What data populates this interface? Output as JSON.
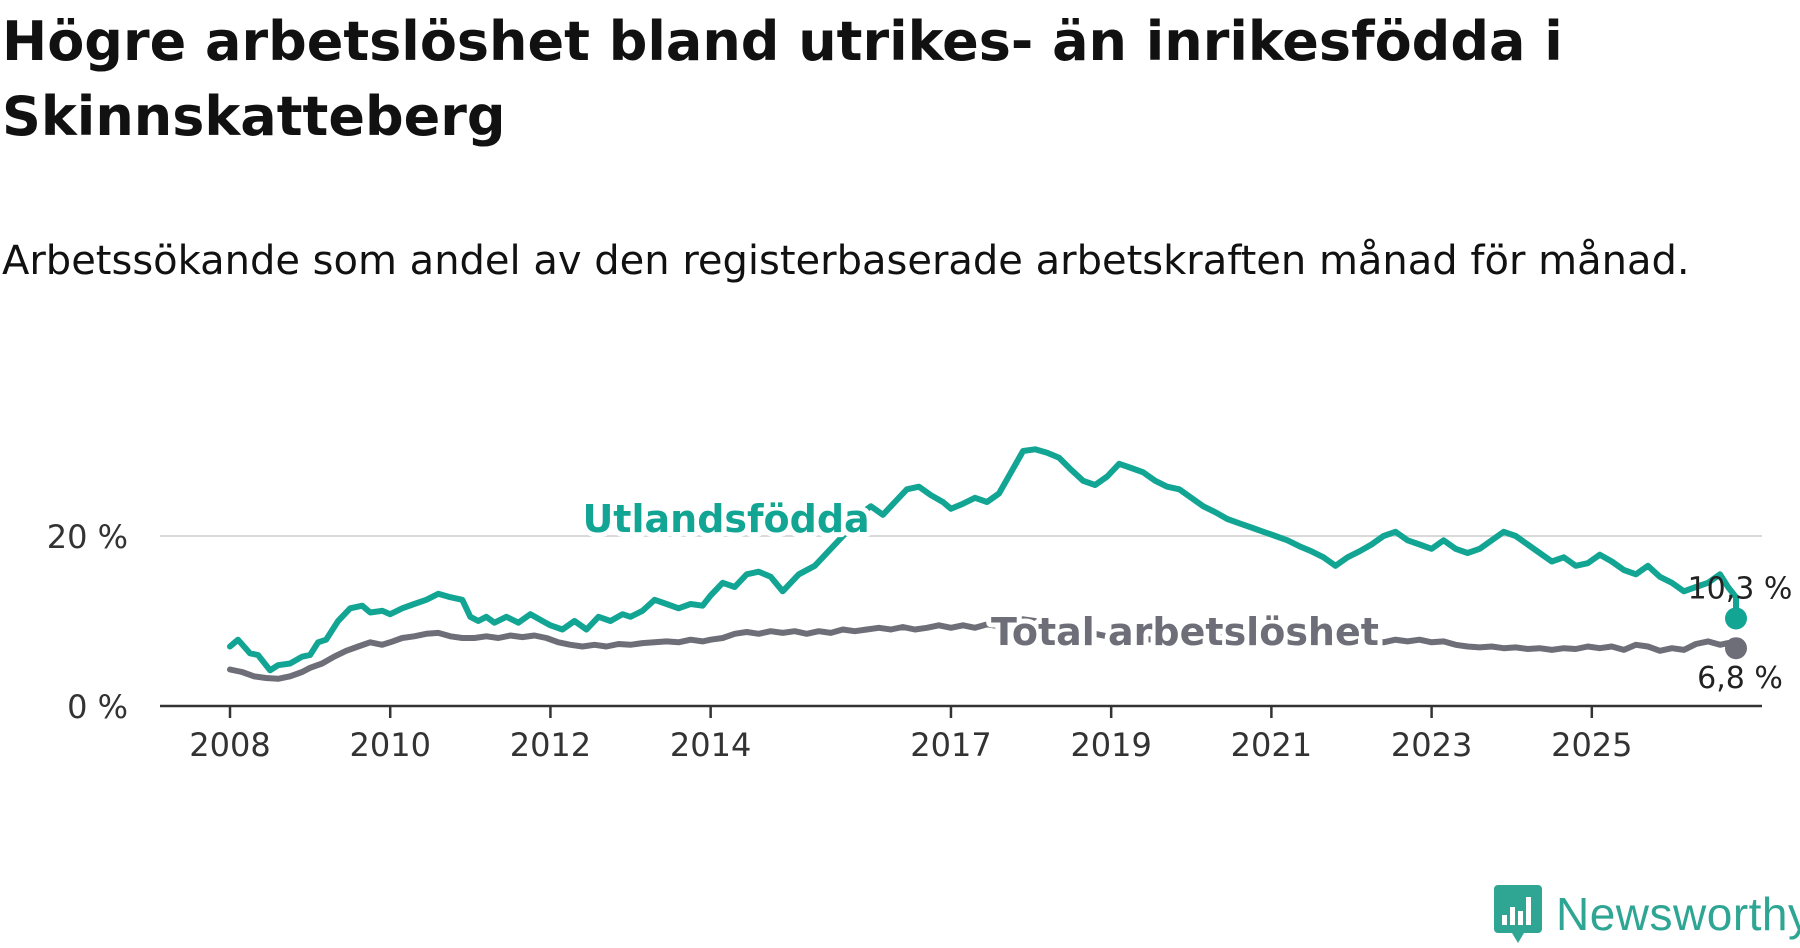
{
  "header": {
    "title": "Högre arbetslöshet bland utrikes- än inrikesfödda i Skinnskatteberg",
    "subtitle": "Arbetssökande som andel av den registerbaserade arbetskraften månad för månad."
  },
  "brand": {
    "name": "Newsworthy",
    "color": "#2fa594",
    "icon": "newsworthy-logo-icon"
  },
  "chart_data": {
    "type": "line",
    "title": "Högre arbetslöshet bland utrikes- än inrikesfödda i Skinnskatteberg",
    "subtitle": "Arbetssökande som andel av den registerbaserade arbetskraften månad för månad.",
    "xlabel": "",
    "ylabel": "",
    "xlim": [
      2008.0,
      2026.8
    ],
    "ylim": [
      0,
      30
    ],
    "grid": "horizontal",
    "x_ticks": [
      2008,
      2010,
      2012,
      2014,
      2017,
      2019,
      2021,
      2023,
      2025
    ],
    "x_tick_labels": [
      "2008",
      "2010",
      "2012",
      "2014",
      "2017",
      "2019",
      "2021",
      "2023",
      "2025"
    ],
    "y_ticks": [
      0,
      20
    ],
    "y_tick_labels": [
      "0 %",
      "20 %"
    ],
    "series": [
      {
        "name": "Utlandsfödda",
        "label": "Utlandsfödda",
        "color": "#12a594",
        "last_label": "10,3 %",
        "points": [
          [
            2008.0,
            7.0
          ],
          [
            2008.1,
            7.8
          ],
          [
            2008.25,
            6.2
          ],
          [
            2008.35,
            6.0
          ],
          [
            2008.5,
            4.2
          ],
          [
            2008.6,
            4.8
          ],
          [
            2008.75,
            5.0
          ],
          [
            2008.9,
            5.8
          ],
          [
            2009.0,
            6.0
          ],
          [
            2009.1,
            7.5
          ],
          [
            2009.2,
            7.8
          ],
          [
            2009.35,
            10.0
          ],
          [
            2009.5,
            11.5
          ],
          [
            2009.65,
            11.8
          ],
          [
            2009.75,
            11.0
          ],
          [
            2009.9,
            11.2
          ],
          [
            2010.0,
            10.8
          ],
          [
            2010.15,
            11.5
          ],
          [
            2010.3,
            12.0
          ],
          [
            2010.45,
            12.5
          ],
          [
            2010.6,
            13.2
          ],
          [
            2010.75,
            12.8
          ],
          [
            2010.9,
            12.5
          ],
          [
            2011.0,
            10.5
          ],
          [
            2011.1,
            10.0
          ],
          [
            2011.2,
            10.5
          ],
          [
            2011.3,
            9.8
          ],
          [
            2011.45,
            10.5
          ],
          [
            2011.6,
            9.8
          ],
          [
            2011.75,
            10.8
          ],
          [
            2011.9,
            10.0
          ],
          [
            2012.0,
            9.5
          ],
          [
            2012.15,
            9.0
          ],
          [
            2012.3,
            10.0
          ],
          [
            2012.45,
            9.0
          ],
          [
            2012.6,
            10.5
          ],
          [
            2012.75,
            10.0
          ],
          [
            2012.9,
            10.8
          ],
          [
            2013.0,
            10.5
          ],
          [
            2013.15,
            11.2
          ],
          [
            2013.3,
            12.5
          ],
          [
            2013.45,
            12.0
          ],
          [
            2013.6,
            11.5
          ],
          [
            2013.75,
            12.0
          ],
          [
            2013.9,
            11.8
          ],
          [
            2014.0,
            13.0
          ],
          [
            2014.15,
            14.5
          ],
          [
            2014.3,
            14.0
          ],
          [
            2014.45,
            15.5
          ],
          [
            2014.6,
            15.8
          ],
          [
            2014.75,
            15.2
          ],
          [
            2014.9,
            13.5
          ],
          [
            2015.1,
            15.5
          ],
          [
            2015.3,
            16.5
          ],
          [
            2015.5,
            18.5
          ],
          [
            2015.7,
            20.5
          ],
          [
            2015.85,
            22.5
          ],
          [
            2016.0,
            23.5
          ],
          [
            2016.15,
            22.5
          ],
          [
            2016.3,
            24.0
          ],
          [
            2016.45,
            25.5
          ],
          [
            2016.6,
            25.8
          ],
          [
            2016.75,
            24.8
          ],
          [
            2016.9,
            24.0
          ],
          [
            2017.0,
            23.2
          ],
          [
            2017.15,
            23.8
          ],
          [
            2017.3,
            24.5
          ],
          [
            2017.45,
            24.0
          ],
          [
            2017.6,
            25.0
          ],
          [
            2017.75,
            27.5
          ],
          [
            2017.9,
            30.0
          ],
          [
            2018.05,
            30.2
          ],
          [
            2018.2,
            29.8
          ],
          [
            2018.35,
            29.2
          ],
          [
            2018.5,
            27.8
          ],
          [
            2018.65,
            26.5
          ],
          [
            2018.8,
            26.0
          ],
          [
            2018.95,
            27.0
          ],
          [
            2019.1,
            28.5
          ],
          [
            2019.25,
            28.0
          ],
          [
            2019.4,
            27.5
          ],
          [
            2019.55,
            26.5
          ],
          [
            2019.7,
            25.8
          ],
          [
            2019.85,
            25.5
          ],
          [
            2020.0,
            24.5
          ],
          [
            2020.15,
            23.5
          ],
          [
            2020.3,
            22.8
          ],
          [
            2020.45,
            22.0
          ],
          [
            2020.6,
            21.5
          ],
          [
            2020.75,
            21.0
          ],
          [
            2020.9,
            20.5
          ],
          [
            2021.05,
            20.0
          ],
          [
            2021.2,
            19.5
          ],
          [
            2021.35,
            18.8
          ],
          [
            2021.5,
            18.2
          ],
          [
            2021.65,
            17.5
          ],
          [
            2021.8,
            16.5
          ],
          [
            2021.95,
            17.5
          ],
          [
            2022.1,
            18.2
          ],
          [
            2022.25,
            19.0
          ],
          [
            2022.4,
            20.0
          ],
          [
            2022.55,
            20.5
          ],
          [
            2022.7,
            19.5
          ],
          [
            2022.85,
            19.0
          ],
          [
            2023.0,
            18.5
          ],
          [
            2023.15,
            19.5
          ],
          [
            2023.3,
            18.5
          ],
          [
            2023.45,
            18.0
          ],
          [
            2023.6,
            18.5
          ],
          [
            2023.75,
            19.5
          ],
          [
            2023.9,
            20.5
          ],
          [
            2024.05,
            20.0
          ],
          [
            2024.2,
            19.0
          ],
          [
            2024.35,
            18.0
          ],
          [
            2024.5,
            17.0
          ],
          [
            2024.65,
            17.5
          ],
          [
            2024.8,
            16.5
          ],
          [
            2024.95,
            16.8
          ],
          [
            2025.1,
            17.8
          ],
          [
            2025.25,
            17.0
          ],
          [
            2025.4,
            16.0
          ],
          [
            2025.55,
            15.5
          ],
          [
            2025.7,
            16.5
          ],
          [
            2025.85,
            15.2
          ],
          [
            2026.0,
            14.5
          ],
          [
            2026.15,
            13.5
          ],
          [
            2026.3,
            14.0
          ],
          [
            2026.45,
            14.5
          ],
          [
            2026.6,
            15.5
          ],
          [
            2026.7,
            14.0
          ],
          [
            2026.8,
            12.8
          ],
          [
            2026.8,
            10.3
          ]
        ]
      },
      {
        "name": "Total arbetslöshet",
        "label": "Total arbetslöshet",
        "color": "#6e6e78",
        "last_label": "6,8 %",
        "points": [
          [
            2008.0,
            4.3
          ],
          [
            2008.15,
            4.0
          ],
          [
            2008.3,
            3.5
          ],
          [
            2008.45,
            3.3
          ],
          [
            2008.6,
            3.2
          ],
          [
            2008.75,
            3.5
          ],
          [
            2008.9,
            4.0
          ],
          [
            2009.0,
            4.5
          ],
          [
            2009.15,
            5.0
          ],
          [
            2009.3,
            5.8
          ],
          [
            2009.45,
            6.5
          ],
          [
            2009.6,
            7.0
          ],
          [
            2009.75,
            7.5
          ],
          [
            2009.9,
            7.2
          ],
          [
            2010.0,
            7.5
          ],
          [
            2010.15,
            8.0
          ],
          [
            2010.3,
            8.2
          ],
          [
            2010.45,
            8.5
          ],
          [
            2010.6,
            8.6
          ],
          [
            2010.75,
            8.2
          ],
          [
            2010.9,
            8.0
          ],
          [
            2011.05,
            8.0
          ],
          [
            2011.2,
            8.2
          ],
          [
            2011.35,
            8.0
          ],
          [
            2011.5,
            8.3
          ],
          [
            2011.65,
            8.1
          ],
          [
            2011.8,
            8.3
          ],
          [
            2011.95,
            8.0
          ],
          [
            2012.1,
            7.5
          ],
          [
            2012.25,
            7.2
          ],
          [
            2012.4,
            7.0
          ],
          [
            2012.55,
            7.2
          ],
          [
            2012.7,
            7.0
          ],
          [
            2012.85,
            7.3
          ],
          [
            2013.0,
            7.2
          ],
          [
            2013.15,
            7.4
          ],
          [
            2013.3,
            7.5
          ],
          [
            2013.45,
            7.6
          ],
          [
            2013.6,
            7.5
          ],
          [
            2013.75,
            7.8
          ],
          [
            2013.9,
            7.6
          ],
          [
            2014.0,
            7.8
          ],
          [
            2014.15,
            8.0
          ],
          [
            2014.3,
            8.5
          ],
          [
            2014.45,
            8.7
          ],
          [
            2014.6,
            8.5
          ],
          [
            2014.75,
            8.8
          ],
          [
            2014.9,
            8.6
          ],
          [
            2015.05,
            8.8
          ],
          [
            2015.2,
            8.5
          ],
          [
            2015.35,
            8.8
          ],
          [
            2015.5,
            8.6
          ],
          [
            2015.65,
            9.0
          ],
          [
            2015.8,
            8.8
          ],
          [
            2015.95,
            9.0
          ],
          [
            2016.1,
            9.2
          ],
          [
            2016.25,
            9.0
          ],
          [
            2016.4,
            9.3
          ],
          [
            2016.55,
            9.0
          ],
          [
            2016.7,
            9.2
          ],
          [
            2016.85,
            9.5
          ],
          [
            2017.0,
            9.2
          ],
          [
            2017.15,
            9.5
          ],
          [
            2017.3,
            9.2
          ],
          [
            2017.45,
            9.6
          ],
          [
            2017.6,
            9.4
          ],
          [
            2017.75,
            9.8
          ],
          [
            2017.9,
            10.2
          ],
          [
            2018.05,
            10.0
          ],
          [
            2018.2,
            9.7
          ],
          [
            2018.35,
            9.3
          ],
          [
            2018.5,
            9.0
          ],
          [
            2018.65,
            8.8
          ],
          [
            2018.8,
            8.5
          ],
          [
            2018.95,
            8.2
          ],
          [
            2019.1,
            8.0
          ],
          [
            2019.25,
            8.2
          ],
          [
            2019.4,
            7.9
          ],
          [
            2019.55,
            7.8
          ],
          [
            2019.7,
            8.0
          ],
          [
            2019.85,
            7.8
          ],
          [
            2020.0,
            7.8
          ],
          [
            2020.15,
            8.0
          ],
          [
            2020.3,
            8.2
          ],
          [
            2020.45,
            8.0
          ],
          [
            2020.6,
            7.8
          ],
          [
            2020.75,
            7.6
          ],
          [
            2020.9,
            7.8
          ],
          [
            2021.05,
            7.6
          ],
          [
            2021.2,
            7.5
          ],
          [
            2021.35,
            7.6
          ],
          [
            2021.5,
            7.4
          ],
          [
            2021.65,
            7.5
          ],
          [
            2021.8,
            7.4
          ],
          [
            2021.95,
            7.5
          ],
          [
            2022.1,
            7.4
          ],
          [
            2022.25,
            7.6
          ],
          [
            2022.4,
            7.5
          ],
          [
            2022.55,
            7.8
          ],
          [
            2022.7,
            7.6
          ],
          [
            2022.85,
            7.8
          ],
          [
            2023.0,
            7.5
          ],
          [
            2023.15,
            7.6
          ],
          [
            2023.3,
            7.2
          ],
          [
            2023.45,
            7.0
          ],
          [
            2023.6,
            6.9
          ],
          [
            2023.75,
            7.0
          ],
          [
            2023.9,
            6.8
          ],
          [
            2024.05,
            6.9
          ],
          [
            2024.2,
            6.7
          ],
          [
            2024.35,
            6.8
          ],
          [
            2024.5,
            6.6
          ],
          [
            2024.65,
            6.8
          ],
          [
            2024.8,
            6.7
          ],
          [
            2024.95,
            7.0
          ],
          [
            2025.1,
            6.8
          ],
          [
            2025.25,
            7.0
          ],
          [
            2025.4,
            6.6
          ],
          [
            2025.55,
            7.2
          ],
          [
            2025.7,
            7.0
          ],
          [
            2025.85,
            6.5
          ],
          [
            2026.0,
            6.8
          ],
          [
            2026.15,
            6.6
          ],
          [
            2026.3,
            7.3
          ],
          [
            2026.45,
            7.6
          ],
          [
            2026.6,
            7.2
          ],
          [
            2026.7,
            7.4
          ],
          [
            2026.8,
            6.8
          ]
        ]
      }
    ]
  }
}
